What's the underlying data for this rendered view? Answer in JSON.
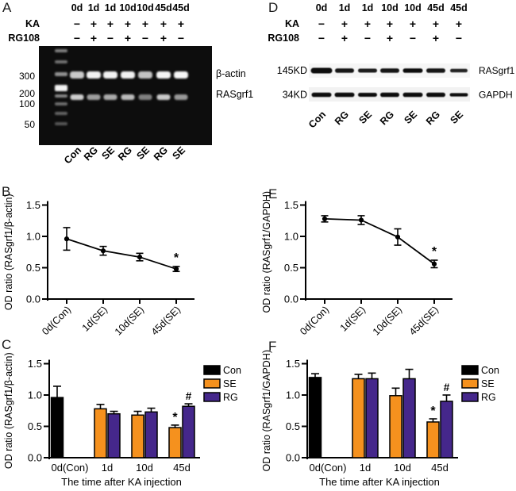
{
  "panels": {
    "A": {
      "letter": "A",
      "day_headers": [
        "0d",
        "1d",
        "1d",
        "10d",
        "10d",
        "45d",
        "45d"
      ],
      "treatments": [
        {
          "label": "KA",
          "values": [
            "−",
            "+",
            "+",
            "+",
            "+",
            "+",
            "+"
          ]
        },
        {
          "label": "RG108",
          "values": [
            "−",
            "+",
            "−",
            "+",
            "−",
            "+",
            "−"
          ]
        }
      ],
      "ladder_labels": [
        "300",
        "200",
        "100",
        "50"
      ],
      "band_labels": [
        "β-actin",
        "RASgrf1"
      ],
      "lane_labels": [
        "Con",
        "RG",
        "SE",
        "RG",
        "SE",
        "RG",
        "SE"
      ]
    },
    "B": {
      "letter": "B"
    },
    "C": {
      "letter": "C"
    },
    "D": {
      "letter": "D",
      "day_headers": [
        "0d",
        "1d",
        "1d",
        "10d",
        "10d",
        "45d",
        "45d"
      ],
      "treatments": [
        {
          "label": "KA",
          "values": [
            "−",
            "+",
            "+",
            "+",
            "+",
            "+",
            "+"
          ]
        },
        {
          "label": "RG108",
          "values": [
            "−",
            "+",
            "−",
            "+",
            "−",
            "+",
            "−"
          ]
        }
      ],
      "marker_labels": [
        "145KD",
        "34KD"
      ],
      "band_labels": [
        "RASgrf1",
        "GAPDH"
      ],
      "lane_labels": [
        "Con",
        "RG",
        "SE",
        "RG",
        "SE",
        "RG",
        "SE"
      ]
    },
    "E": {
      "letter": "E"
    },
    "F": {
      "letter": "F"
    }
  },
  "colors": {
    "con": "#000000",
    "se": "#F5911E",
    "rg": "#45278B"
  },
  "chart_data": [
    {
      "id": "B",
      "type": "line",
      "categories": [
        "0d(Con)",
        "1d(SE)",
        "10d(SE)",
        "45d(SE)"
      ],
      "values": [
        0.96,
        0.77,
        0.67,
        0.48
      ],
      "errors": [
        0.18,
        0.07,
        0.06,
        0.04
      ],
      "annotations": [
        {
          "category": "45d(SE)",
          "symbol": "*"
        }
      ],
      "ylabel": "OD ratio (RASgrf1/β-actin)",
      "yticks": [
        "0.0",
        "0.5",
        "1.0",
        "1.5"
      ],
      "ylim": [
        0,
        1.6
      ],
      "grid": false
    },
    {
      "id": "E",
      "type": "line",
      "categories": [
        "0d(Con)",
        "1d(SE)",
        "10d(SE)",
        "45d(SE)"
      ],
      "values": [
        1.28,
        1.26,
        0.99,
        0.56
      ],
      "errors": [
        0.05,
        0.07,
        0.13,
        0.06
      ],
      "annotations": [
        {
          "category": "45d(SE)",
          "symbol": "*"
        }
      ],
      "ylabel": "OD ratio (RASgrf1/GAPDH)",
      "yticks": [
        "0.0",
        "0.5",
        "1.0",
        "1.5"
      ],
      "ylim": [
        0,
        1.6
      ],
      "grid": false
    },
    {
      "id": "C",
      "type": "bar",
      "categories": [
        "0d(Con)",
        "1d",
        "10d",
        "45d"
      ],
      "series": [
        {
          "name": "Con",
          "color": "#000000",
          "values": [
            0.96,
            null,
            null,
            null
          ],
          "errors": [
            0.18,
            null,
            null,
            null
          ]
        },
        {
          "name": "SE",
          "color": "#F5911E",
          "values": [
            null,
            0.78,
            0.68,
            0.48
          ],
          "errors": [
            null,
            0.07,
            0.06,
            0.04
          ]
        },
        {
          "name": "RG",
          "color": "#45278B",
          "values": [
            null,
            0.7,
            0.73,
            0.82
          ],
          "errors": [
            null,
            0.04,
            0.06,
            0.04
          ]
        }
      ],
      "annotations": [
        {
          "category": "45d",
          "series": "SE",
          "symbol": "*"
        },
        {
          "category": "45d",
          "series": "RG",
          "symbol": "#"
        }
      ],
      "xlabel": "The time after KA injection",
      "ylabel": "OD ratio (RASgrf1/β-actin)",
      "yticks": [
        "0.0",
        "0.5",
        "1.0",
        "1.5"
      ],
      "ylim": [
        0,
        1.6
      ],
      "legend": [
        "Con",
        "SE",
        "RG"
      ],
      "legend_position": "right",
      "grid": false
    },
    {
      "id": "F",
      "type": "bar",
      "categories": [
        "0d(Con)",
        "1d",
        "10d",
        "45d"
      ],
      "series": [
        {
          "name": "Con",
          "color": "#000000",
          "values": [
            1.28,
            null,
            null,
            null
          ],
          "errors": [
            0.06,
            null,
            null,
            null
          ]
        },
        {
          "name": "SE",
          "color": "#F5911E",
          "values": [
            null,
            1.26,
            0.99,
            0.57
          ],
          "errors": [
            null,
            0.07,
            0.12,
            0.05
          ]
        },
        {
          "name": "RG",
          "color": "#45278B",
          "values": [
            null,
            1.26,
            1.26,
            0.9
          ],
          "errors": [
            null,
            0.09,
            0.15,
            0.1
          ]
        }
      ],
      "annotations": [
        {
          "category": "45d",
          "series": "SE",
          "symbol": "*"
        },
        {
          "category": "45d",
          "series": "RG",
          "symbol": "#"
        }
      ],
      "xlabel": "The time after KA injection",
      "ylabel": "OD ratio (RASgrf1/GAPDH)",
      "yticks": [
        "0.0",
        "0.5",
        "1.0",
        "1.5"
      ],
      "ylim": [
        0,
        1.6
      ],
      "legend": [
        "Con",
        "SE",
        "RG"
      ],
      "legend_position": "right",
      "grid": false
    }
  ]
}
